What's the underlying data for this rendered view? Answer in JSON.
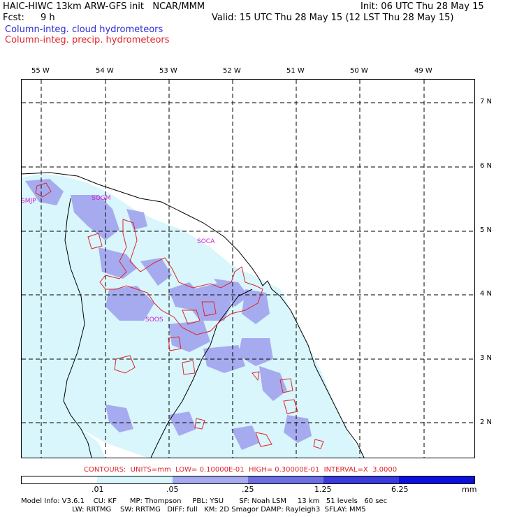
{
  "header": {
    "title_left": "HAIC-HIWC 13km ARW-GFS init   NCAR/MMM",
    "init": "Init: 06 UTC Thu 28 May 15",
    "fcst_label": "Fcst:",
    "fcst_value": "9 h",
    "valid": "Valid: 15 UTC Thu 28 May 15 (12 LST Thu 28 May 15)",
    "field1": "Column-integ. cloud hydrometeors",
    "field2": "Column-integ. precip. hydrometeors"
  },
  "colors": {
    "field1": "#2b2bd6",
    "field2": "#e0242a",
    "station": "#d21ad2",
    "shade_light": "#d8f6fb",
    "shade_mid": "#a6abef",
    "shade_dark": "#6e6fe3",
    "shade_darker": "#3b3bdb",
    "shade_darkest": "#0f0fdb"
  },
  "map": {
    "lon_labels": [
      "55 W",
      "54 W",
      "53 W",
      "52 W",
      "51 W",
      "50 W",
      "49 W"
    ],
    "lat_labels": [
      "7 N",
      "6 N",
      "5 N",
      "4 N",
      "3 N",
      "2 N"
    ],
    "stations": [
      "SMJP",
      "SOGM",
      "SOCA",
      "SOOS"
    ]
  },
  "contours": {
    "text": "CONTOURS:  UNITS=mm  LOW= 0.10000E-01  HIGH= 0.30000E-01  INTERVAL=X  3.0000"
  },
  "colorbar": {
    "labels": [
      ".01",
      ".05",
      ".25",
      "1.25",
      "6.25"
    ],
    "units": "mm",
    "colors": [
      "#ffffff",
      "#d8f6fb",
      "#a6abef",
      "#6e6fe3",
      "#3b3bdb",
      "#0f0fdb"
    ]
  },
  "footer": {
    "line1": "Model Info: V3.6.1    CU: KF      MP: Thompson     PBL: YSU       SF: Noah LSM     13 km   51 levels   60 sec",
    "line2": "                       LW: RRTMG    SW: RRTMG   DIFF: full   KM: 2D Smagor DAMP: Rayleigh3  SFLAY: MM5"
  }
}
